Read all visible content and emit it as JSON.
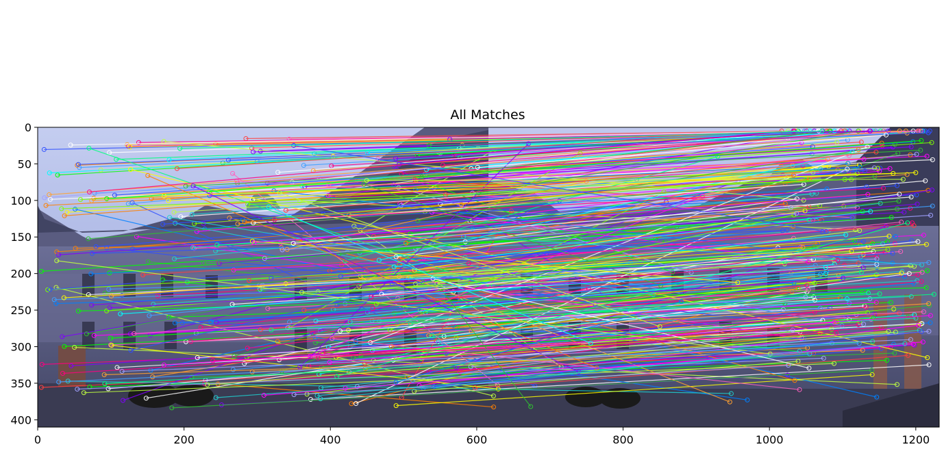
{
  "chart_data": {
    "type": "image",
    "title": "All Matches",
    "xlabel": "",
    "ylabel": "",
    "xlim": [
      0,
      1232
    ],
    "ylim": [
      410,
      0
    ],
    "xticks": [
      0,
      200,
      400,
      600,
      800,
      1000,
      1200
    ],
    "yticks": [
      0,
      50,
      100,
      150,
      200,
      250,
      300,
      350,
      400
    ],
    "x_tick_labels": [
      "0",
      "200",
      "400",
      "600",
      "800",
      "1000",
      "1200"
    ],
    "y_tick_labels": [
      "0",
      "50",
      "100",
      "150",
      "200",
      "250",
      "300",
      "350",
      "400"
    ],
    "image_split_x": 616,
    "grid": false
  }
}
